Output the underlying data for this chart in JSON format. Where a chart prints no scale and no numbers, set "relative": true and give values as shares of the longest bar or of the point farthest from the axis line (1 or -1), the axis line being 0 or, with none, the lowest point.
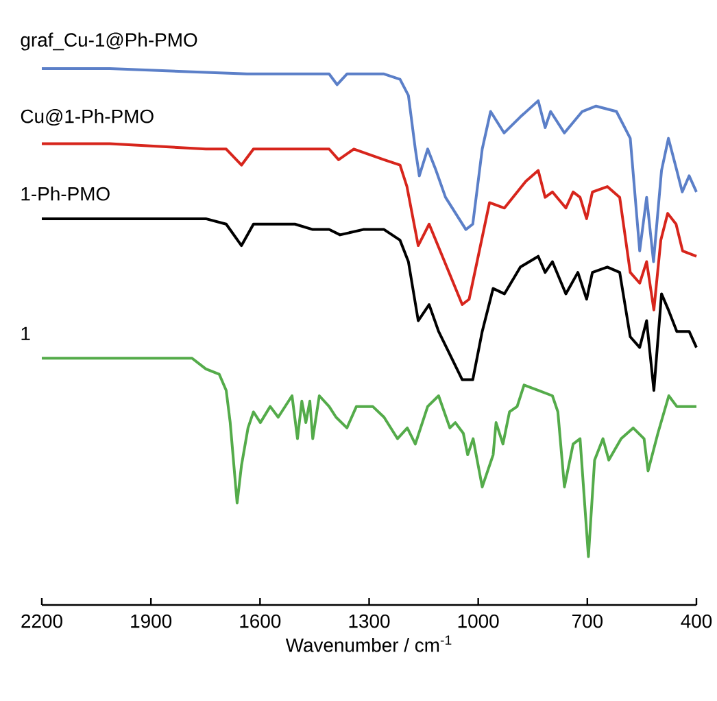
{
  "chart_data": {
    "type": "line",
    "relative": true,
    "xlabel": "Wavenumber / cm$^{-1}$",
    "xlim": [
      2200,
      400
    ],
    "xticks": [
      2200,
      1900,
      1600,
      1300,
      1000,
      700,
      400
    ],
    "line_style": "solid",
    "marker": "none",
    "series": [
      {
        "name": "graf_Cu-1@Ph-PMO",
        "color": "#5b7fc8",
        "x": [
          2200,
          2013,
          1636,
          1410,
          1388,
          1361,
          1259,
          1215,
          1192,
          1173,
          1162,
          1139,
          1116,
          1090,
          1034,
          1015,
          989,
          966,
          929,
          884,
          835,
          816,
          801,
          763,
          714,
          676,
          620,
          582,
          556,
          537,
          518,
          496,
          477,
          454,
          439,
          420,
          400
        ],
        "values": [
          1.0,
          1.0,
          0.99,
          0.99,
          0.97,
          0.99,
          0.99,
          0.98,
          0.95,
          0.85,
          0.8,
          0.85,
          0.81,
          0.76,
          0.7,
          0.71,
          0.85,
          0.92,
          0.88,
          0.91,
          0.94,
          0.89,
          0.92,
          0.88,
          0.92,
          0.93,
          0.92,
          0.87,
          0.66,
          0.76,
          0.64,
          0.81,
          0.87,
          0.81,
          0.77,
          0.8,
          0.77
        ]
      },
      {
        "name": "Cu@1-Ph-PMO",
        "color": "#d7251c",
        "x": [
          2200,
          2013,
          1749,
          1693,
          1651,
          1618,
          1561,
          1455,
          1410,
          1384,
          1342,
          1259,
          1215,
          1196,
          1165,
          1135,
          1044,
          1025,
          969,
          928,
          869,
          835,
          816,
          796,
          759,
          739,
          720,
          702,
          686,
          645,
          611,
          582,
          556,
          537,
          517,
          498,
          479,
          456,
          438,
          400
        ],
        "values": [
          0.86,
          0.86,
          0.85,
          0.85,
          0.82,
          0.85,
          0.85,
          0.85,
          0.85,
          0.83,
          0.85,
          0.83,
          0.82,
          0.78,
          0.67,
          0.71,
          0.56,
          0.57,
          0.75,
          0.74,
          0.79,
          0.81,
          0.76,
          0.77,
          0.74,
          0.77,
          0.76,
          0.72,
          0.77,
          0.78,
          0.76,
          0.62,
          0.6,
          0.64,
          0.55,
          0.68,
          0.73,
          0.71,
          0.66,
          0.65
        ]
      },
      {
        "name": "1-Ph-PMO",
        "color": "#000000",
        "x": [
          2200,
          2013,
          1749,
          1693,
          1651,
          1618,
          1561,
          1504,
          1455,
          1410,
          1380,
          1316,
          1259,
          1215,
          1192,
          1165,
          1135,
          1109,
          1044,
          1015,
          989,
          959,
          928,
          884,
          835,
          816,
          796,
          759,
          726,
          702,
          686,
          645,
          611,
          582,
          556,
          537,
          517,
          496,
          477,
          454,
          437,
          420,
          400
        ],
        "values": [
          0.72,
          0.72,
          0.72,
          0.71,
          0.67,
          0.71,
          0.71,
          0.71,
          0.7,
          0.7,
          0.69,
          0.7,
          0.7,
          0.68,
          0.64,
          0.53,
          0.56,
          0.51,
          0.42,
          0.42,
          0.51,
          0.59,
          0.58,
          0.63,
          0.65,
          0.62,
          0.64,
          0.58,
          0.62,
          0.57,
          0.62,
          0.63,
          0.62,
          0.5,
          0.48,
          0.53,
          0.4,
          0.58,
          0.55,
          0.51,
          0.51,
          0.51,
          0.48
        ]
      },
      {
        "name": "1",
        "color": "#54ab4a",
        "x": [
          2200,
          1938,
          1787,
          1768,
          1749,
          1712,
          1693,
          1682,
          1663,
          1651,
          1633,
          1618,
          1599,
          1572,
          1550,
          1512,
          1497,
          1485,
          1474,
          1463,
          1455,
          1437,
          1410,
          1391,
          1361,
          1335,
          1290,
          1259,
          1222,
          1195,
          1173,
          1139,
          1109,
          1078,
          1063,
          1041,
          1029,
          1014,
          989,
          959,
          951,
          932,
          914,
          893,
          874,
          835,
          796,
          781,
          763,
          739,
          720,
          697,
          680,
          657,
          641,
          607,
          574,
          544,
          533,
          506,
          476,
          454,
          400
        ],
        "values": [
          0.46,
          0.46,
          0.46,
          0.45,
          0.44,
          0.43,
          0.4,
          0.34,
          0.19,
          0.26,
          0.33,
          0.36,
          0.34,
          0.37,
          0.35,
          0.39,
          0.31,
          0.38,
          0.34,
          0.38,
          0.31,
          0.39,
          0.37,
          0.35,
          0.33,
          0.37,
          0.37,
          0.35,
          0.31,
          0.33,
          0.3,
          0.37,
          0.39,
          0.33,
          0.34,
          0.32,
          0.28,
          0.31,
          0.22,
          0.28,
          0.34,
          0.3,
          0.36,
          0.37,
          0.41,
          0.4,
          0.39,
          0.36,
          0.22,
          0.3,
          0.31,
          0.09,
          0.27,
          0.31,
          0.27,
          0.31,
          0.33,
          0.31,
          0.25,
          0.32,
          0.39,
          0.37,
          0.37
        ]
      }
    ]
  }
}
